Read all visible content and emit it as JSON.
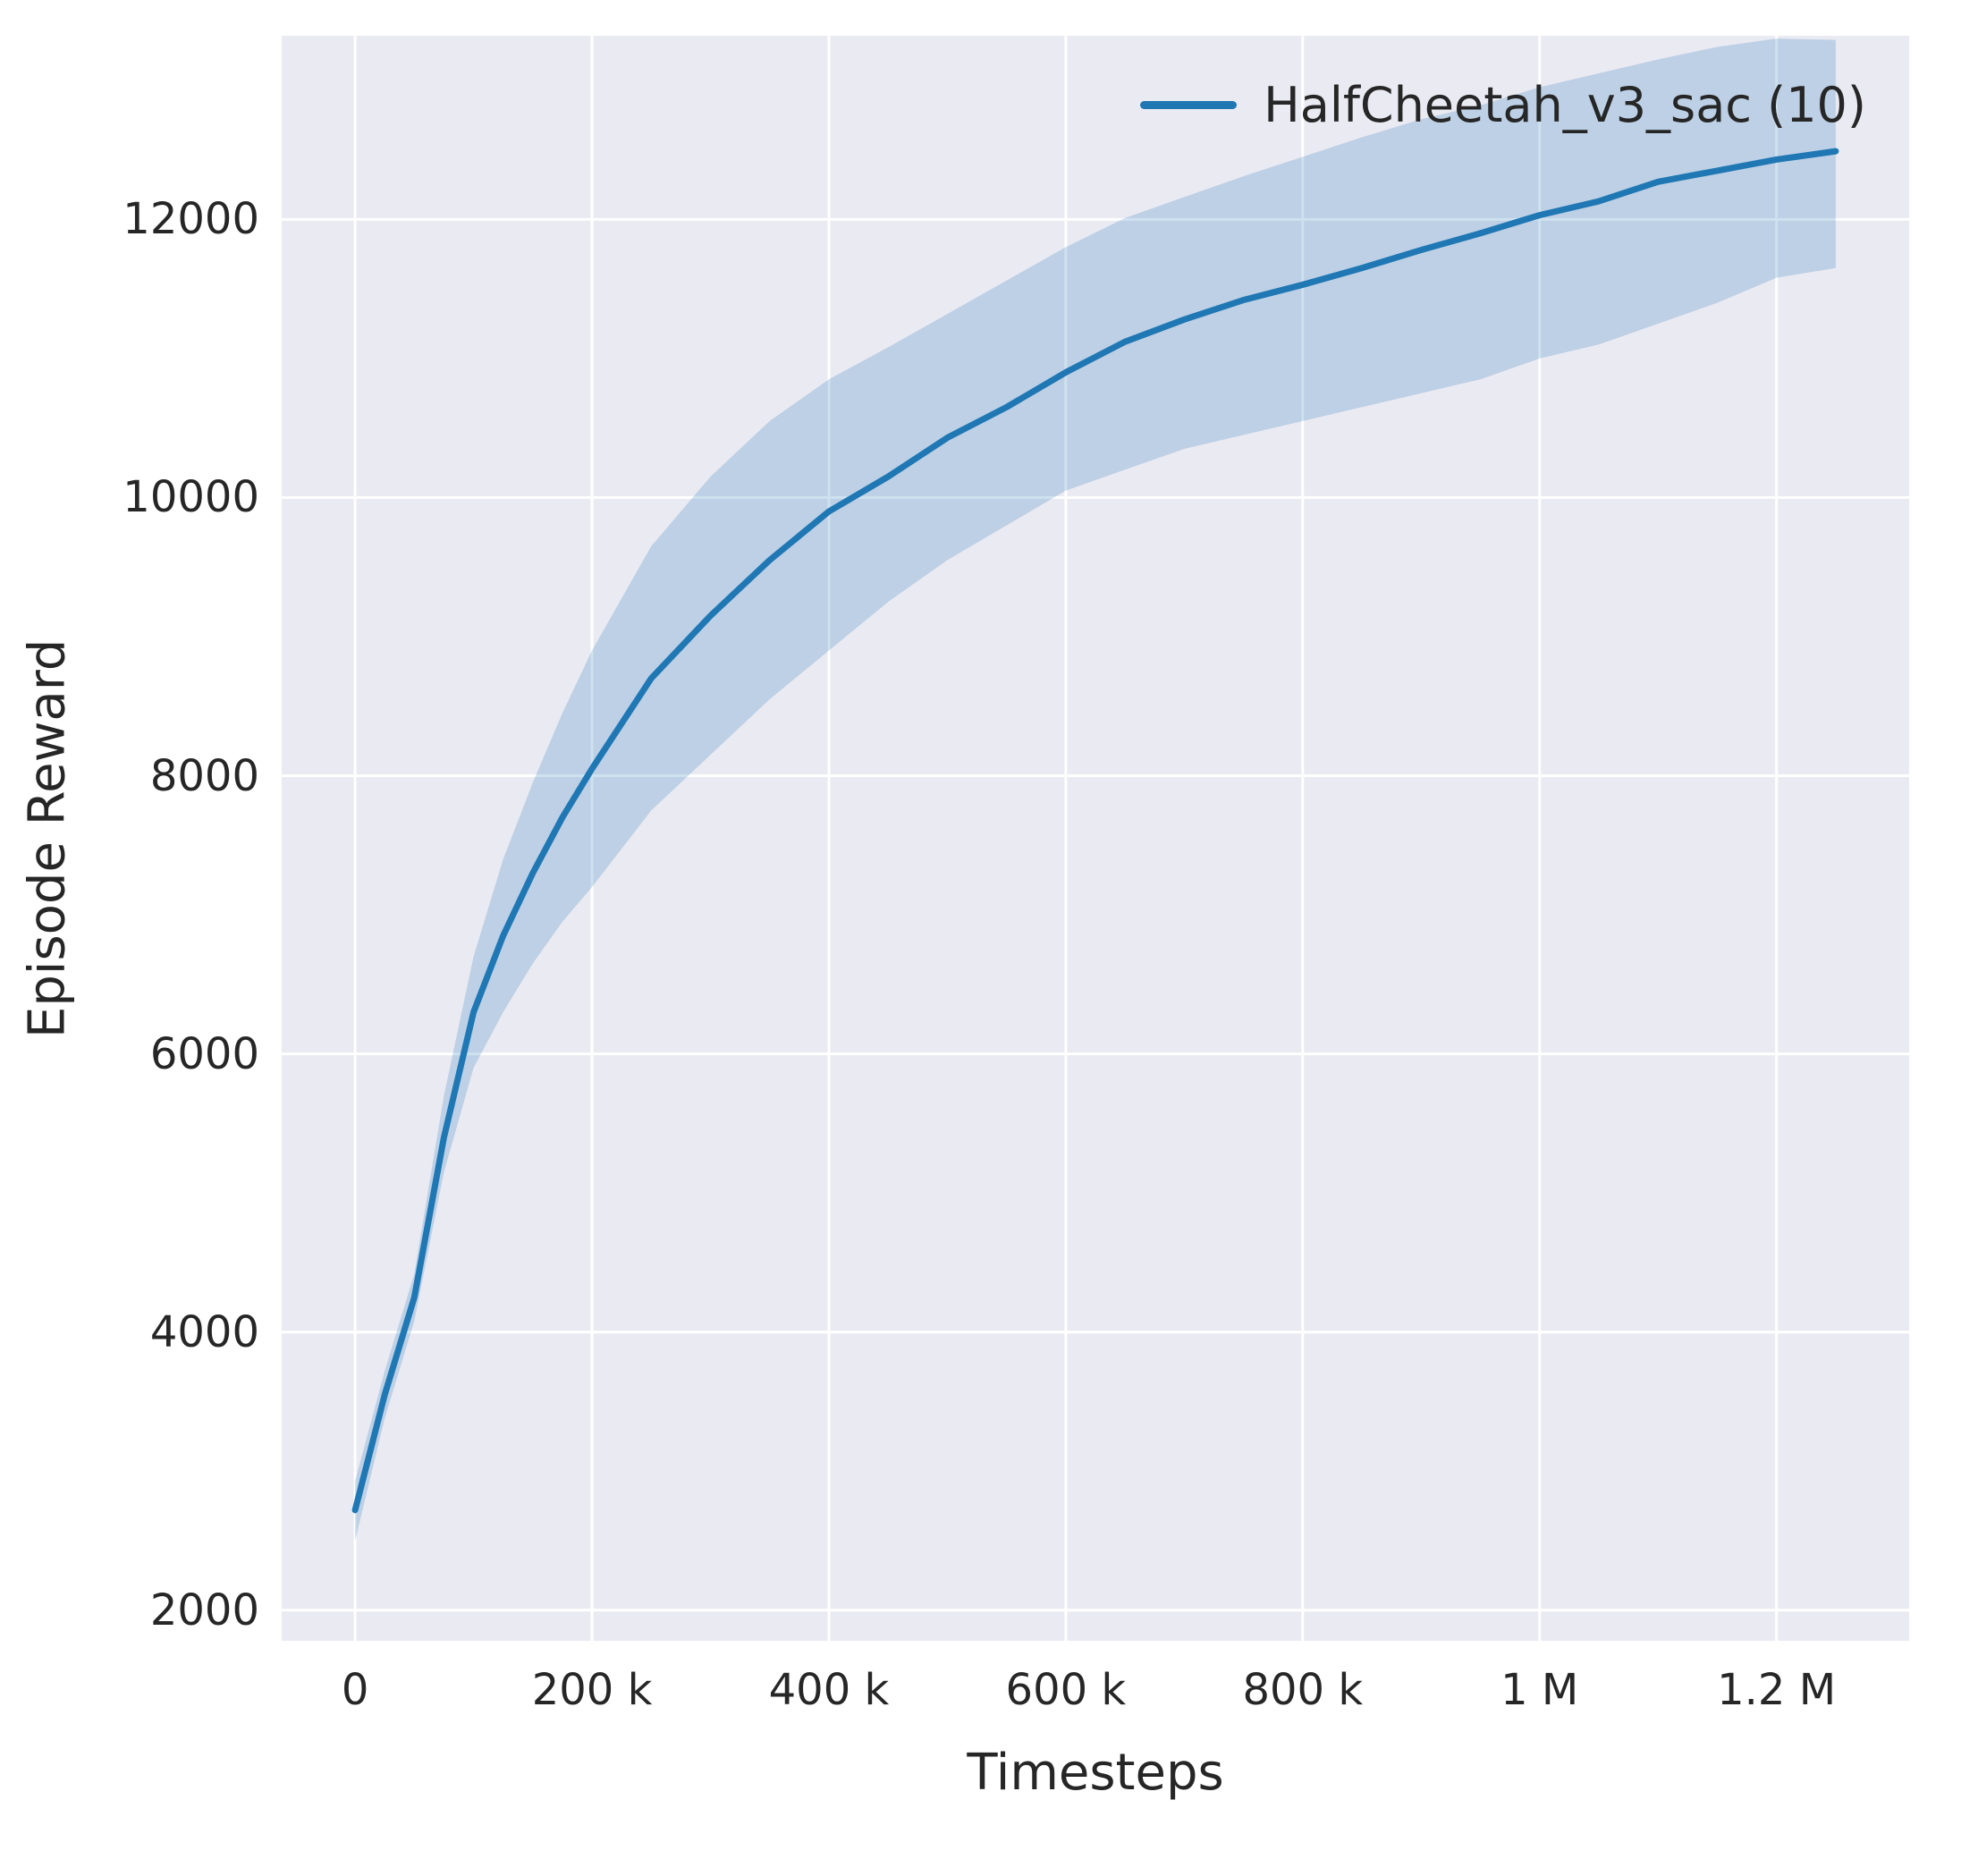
{
  "chart_data": {
    "type": "line",
    "title": "",
    "xlabel": "Timesteps",
    "ylabel": "Episode Reward",
    "xlim": [
      -62000,
      1312000
    ],
    "ylim": [
      1780,
      13320
    ],
    "grid": true,
    "legend_position": "upper right",
    "colors": {
      "plot_background": "#eaeaf2",
      "gridline": "#ffffff",
      "text": "#262626",
      "line": "#1f77b4"
    },
    "x_ticks": [
      {
        "value": 0,
        "label": "0"
      },
      {
        "value": 200000,
        "label": "200 k"
      },
      {
        "value": 400000,
        "label": "400 k"
      },
      {
        "value": 600000,
        "label": "600 k"
      },
      {
        "value": 800000,
        "label": "800 k"
      },
      {
        "value": 1000000,
        "label": "1 M"
      },
      {
        "value": 1200000,
        "label": "1.2 M"
      }
    ],
    "y_ticks": [
      {
        "value": 2000,
        "label": "2000"
      },
      {
        "value": 4000,
        "label": "4000"
      },
      {
        "value": 6000,
        "label": "6000"
      },
      {
        "value": 8000,
        "label": "8000"
      },
      {
        "value": 10000,
        "label": "10000"
      },
      {
        "value": 12000,
        "label": "12000"
      }
    ],
    "series": [
      {
        "name": "HalfCheetah_v3_sac (10)",
        "color": "#1f77b4",
        "band_opacity": 0.22,
        "line_width": 7,
        "x": [
          0,
          25000,
          50000,
          75000,
          100000,
          125000,
          150000,
          175000,
          200000,
          250000,
          300000,
          350000,
          400000,
          450000,
          500000,
          550000,
          600000,
          650000,
          700000,
          750000,
          800000,
          850000,
          900000,
          950000,
          1000000,
          1050000,
          1100000,
          1150000,
          1200000,
          1250000
        ],
        "mean": [
          2720,
          3550,
          4250,
          5400,
          6300,
          6850,
          7300,
          7700,
          8050,
          8700,
          9150,
          9550,
          9900,
          10150,
          10430,
          10650,
          10900,
          11120,
          11280,
          11420,
          11530,
          11650,
          11780,
          11900,
          12030,
          12130,
          12270,
          12350,
          12430,
          12490
        ],
        "lower": [
          2500,
          3380,
          4080,
          5150,
          5900,
          6300,
          6650,
          6950,
          7200,
          7750,
          8150,
          8550,
          8900,
          9250,
          9550,
          9800,
          10050,
          10200,
          10350,
          10450,
          10550,
          10650,
          10750,
          10850,
          11000,
          11100,
          11250,
          11400,
          11580,
          11650
        ],
        "upper": [
          2930,
          3720,
          4420,
          5700,
          6700,
          7400,
          7950,
          8450,
          8900,
          9650,
          10150,
          10550,
          10850,
          11080,
          11320,
          11560,
          11800,
          12010,
          12160,
          12310,
          12450,
          12590,
          12720,
          12820,
          12950,
          13050,
          13150,
          13240,
          13300,
          13290
        ]
      }
    ]
  }
}
